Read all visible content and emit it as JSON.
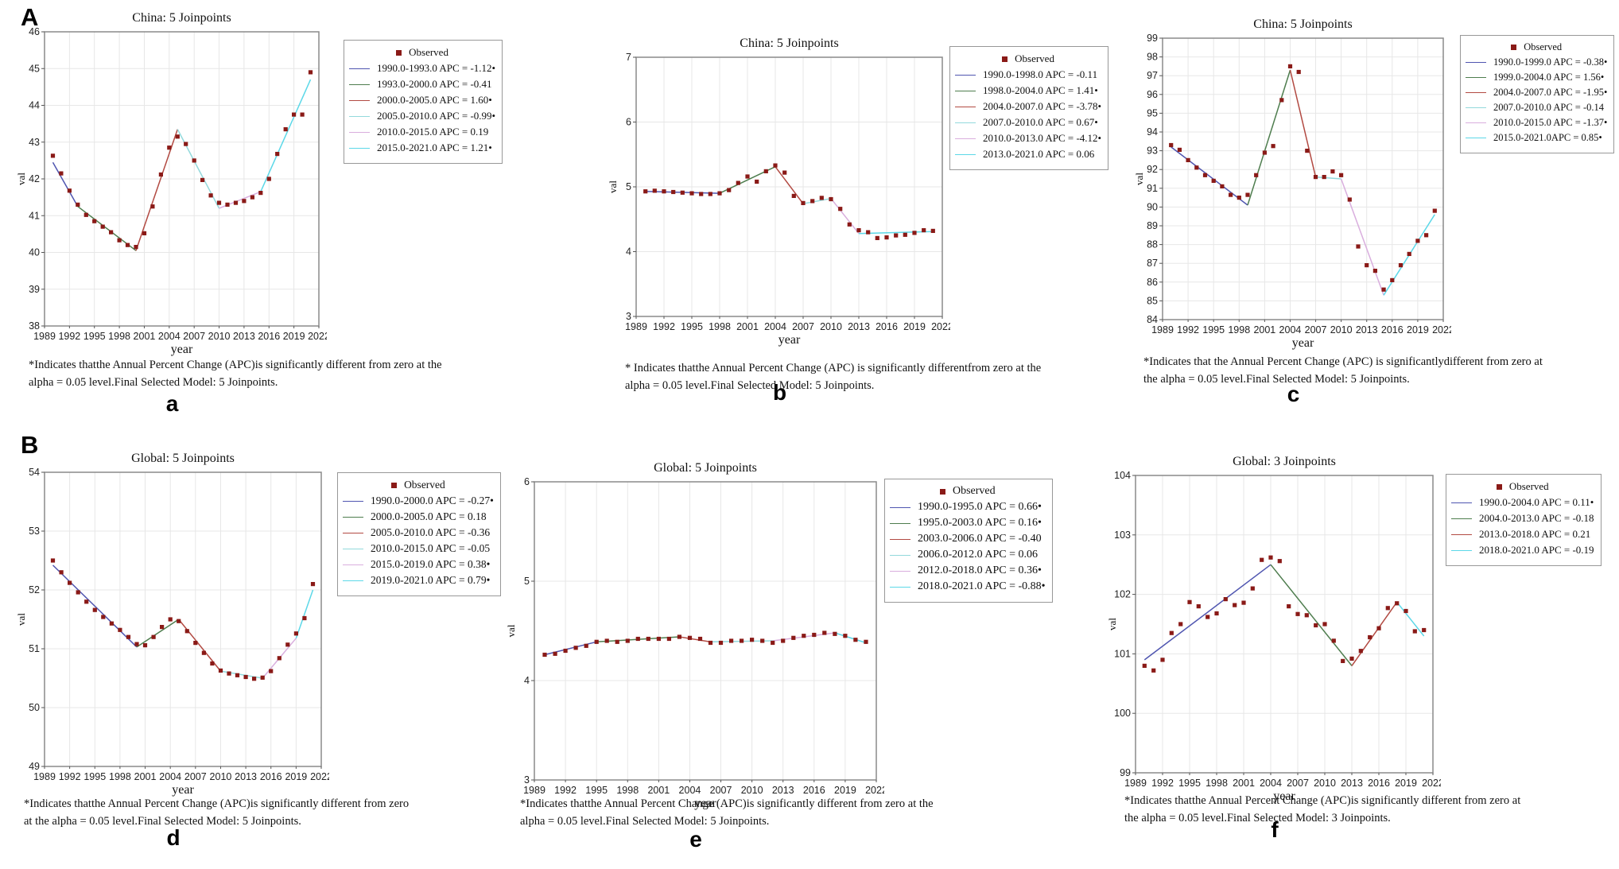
{
  "figure": {
    "row_labels": [
      "A",
      "B"
    ],
    "marker_color": "#8a1a17",
    "segment_palette": [
      "#4f55b0",
      "#4e7d4e",
      "#b24a42",
      "#93d9dc",
      "#d9aede",
      "#5cd8e8"
    ]
  },
  "chart_data": [
    {
      "id": "a",
      "letter": "a",
      "type": "line",
      "title": "China: 5 Joinpoints",
      "xlabel": "year",
      "ylabel": "val",
      "xlim": [
        1989,
        2022
      ],
      "ylim": [
        38,
        46
      ],
      "ytick_step": 1,
      "xticks": [
        1989,
        1992,
        1995,
        1998,
        2001,
        2004,
        2007,
        2010,
        2013,
        2016,
        2019,
        2022
      ],
      "x_start": 1990,
      "values": [
        42.63,
        42.15,
        41.68,
        41.3,
        41.02,
        40.85,
        40.7,
        40.55,
        40.33,
        40.2,
        40.15,
        40.52,
        41.25,
        42.12,
        42.85,
        43.15,
        42.95,
        42.5,
        41.97,
        41.55,
        41.35,
        41.3,
        41.35,
        41.4,
        41.5,
        41.62,
        42.0,
        42.68,
        43.35,
        43.75,
        43.75,
        44.9
      ],
      "segments": [
        [
          1990,
          42.45,
          1993,
          41.25,
          0
        ],
        [
          1993,
          41.25,
          2000,
          40.05,
          1
        ],
        [
          2000,
          40.05,
          2005,
          43.35,
          2
        ],
        [
          2005,
          43.35,
          2010,
          41.2,
          3
        ],
        [
          2010,
          41.2,
          2015,
          41.65,
          4
        ],
        [
          2015,
          41.65,
          2021,
          44.7,
          5
        ]
      ],
      "legend": {
        "header": "Observed",
        "items": [
          "1990.0-1993.0 APC = -1.12•",
          "1993.0-2000.0 APC = -0.41",
          "2000.0-2005.0 APC = 1.60•",
          "2005.0-2010.0 APC = -0.99•",
          "2010.0-2015.0 APC = 0.19",
          "2015.0-2021.0 APC = 1.21•"
        ]
      },
      "footnote": [
        "*Indicates thatthe Annual Percent Change (APC)is significantly different from zero at the",
        "alpha = 0.05 level.Final Selected Model: 5 Joinpoints."
      ]
    },
    {
      "id": "b",
      "letter": "b",
      "type": "line",
      "title": "China: 5 Joinpoints",
      "xlabel": "year",
      "ylabel": "val",
      "xlim": [
        1989,
        2022
      ],
      "ylim": [
        3,
        7
      ],
      "ytick_step": 1,
      "xticks": [
        1989,
        1992,
        1995,
        1998,
        2001,
        2004,
        2007,
        2010,
        2013,
        2016,
        2019,
        2022
      ],
      "x_start": 1990,
      "values": [
        4.93,
        4.94,
        4.93,
        4.92,
        4.91,
        4.9,
        4.89,
        4.89,
        4.9,
        4.95,
        5.06,
        5.16,
        5.08,
        5.24,
        5.33,
        5.22,
        4.86,
        4.75,
        4.78,
        4.83,
        4.81,
        4.66,
        4.42,
        4.33,
        4.3,
        4.21,
        4.22,
        4.25,
        4.26,
        4.29,
        4.33,
        4.32
      ],
      "segments": [
        [
          1990,
          4.93,
          1998,
          4.9,
          0
        ],
        [
          1998,
          4.9,
          2004,
          5.31,
          1
        ],
        [
          2004,
          5.31,
          2007,
          4.74,
          2
        ],
        [
          2007,
          4.74,
          2010,
          4.82,
          3
        ],
        [
          2010,
          4.82,
          2013,
          4.28,
          4
        ],
        [
          2013,
          4.28,
          2021,
          4.31,
          5
        ]
      ],
      "legend": {
        "header": "Observed",
        "items": [
          "1990.0-1998.0 APC = -0.11",
          "1998.0-2004.0 APC = 1.41•",
          "2004.0-2007.0 APC = -3.78•",
          "2007.0-2010.0 APC = 0.67•",
          "2010.0-2013.0 APC = -4.12•",
          "2013.0-2021.0 APC = 0.06"
        ]
      },
      "footnote": [
        "* Indicates thatthe Annual Percent Change (APC) is significantly differentfrom zero at the",
        "alpha = 0.05 level.Final Selected Model: 5 Joinpoints."
      ]
    },
    {
      "id": "c",
      "letter": "c",
      "type": "line",
      "title": "China: 5 Joinpoints",
      "xlabel": "year",
      "ylabel": "val",
      "xlim": [
        1989,
        2022
      ],
      "ylim": [
        84,
        99
      ],
      "ytick_step": 1,
      "xticks": [
        1989,
        1992,
        1995,
        1998,
        2001,
        2004,
        2007,
        2010,
        2013,
        2016,
        2019,
        2022
      ],
      "x_start": 1990,
      "values": [
        93.3,
        93.05,
        92.5,
        92.1,
        91.7,
        91.4,
        91.1,
        90.65,
        90.5,
        90.65,
        91.7,
        92.9,
        93.25,
        95.7,
        97.5,
        97.2,
        93.0,
        91.6,
        91.6,
        91.9,
        91.7,
        90.4,
        87.9,
        86.9,
        86.6,
        85.6,
        86.1,
        86.9,
        87.5,
        88.2,
        88.5,
        89.8
      ],
      "segments": [
        [
          1990,
          93.2,
          1999,
          90.1,
          0
        ],
        [
          1999,
          90.1,
          2004,
          97.3,
          1
        ],
        [
          2004,
          97.3,
          2007,
          91.6,
          2
        ],
        [
          2007,
          91.6,
          2010,
          91.5,
          3
        ],
        [
          2010,
          91.5,
          2015,
          85.3,
          4
        ],
        [
          2015,
          85.3,
          2021,
          89.6,
          5
        ]
      ],
      "legend": {
        "header": "Observed",
        "items": [
          "1990.0-1999.0 APC = -0.38•",
          "1999.0-2004.0 APC = 1.56•",
          "2004.0-2007.0 APC = -1.95•",
          "2007.0-2010.0 APC = -0.14",
          "2010.0-2015.0 APC = -1.37•",
          "2015.0-2021.0APC = 0.85•"
        ]
      },
      "footnote": [
        "*Indicates that the Annual Percent Change (APC) is significantlydifferent from zero at",
        "the alpha = 0.05 level.Final Selected Model: 5 Joinpoints."
      ]
    },
    {
      "id": "d",
      "letter": "d",
      "type": "line",
      "title": "Global: 5 Joinpoints",
      "xlabel": "year",
      "ylabel": "val",
      "xlim": [
        1989,
        2022
      ],
      "ylim": [
        49,
        54
      ],
      "ytick_step": 1,
      "xticks": [
        1989,
        1992,
        1995,
        1998,
        2001,
        2004,
        2007,
        2010,
        2013,
        2016,
        2019,
        2022
      ],
      "x_start": 1990,
      "values": [
        52.5,
        52.3,
        52.12,
        51.96,
        51.8,
        51.66,
        51.54,
        51.43,
        51.32,
        51.2,
        51.08,
        51.06,
        51.2,
        51.37,
        51.5,
        51.47,
        51.3,
        51.1,
        50.93,
        50.75,
        50.63,
        50.58,
        50.55,
        50.52,
        50.49,
        50.51,
        50.62,
        50.84,
        51.07,
        51.26,
        51.52,
        52.1
      ],
      "segments": [
        [
          1990,
          52.42,
          2000,
          51.03,
          0
        ],
        [
          2000,
          51.03,
          2005,
          51.5,
          1
        ],
        [
          2005,
          51.5,
          2010,
          50.62,
          2
        ],
        [
          2010,
          50.62,
          2015,
          50.5,
          3
        ],
        [
          2015,
          50.5,
          2019,
          51.18,
          4
        ],
        [
          2019,
          51.18,
          2021,
          52.0,
          5
        ]
      ],
      "legend": {
        "header": "Observed",
        "items": [
          "1990.0-2000.0 APC = -0.27•",
          "2000.0-2005.0 APC = 0.18",
          "2005.0-2010.0 APC = -0.36",
          "2010.0-2015.0 APC = -0.05",
          "2015.0-2019.0 APC = 0.38•",
          "2019.0-2021.0 APC = 0.79•"
        ]
      },
      "footnote": [
        "*Indicates thatthe Annual Percent Change (APC)is significantly different from zero",
        "at the alpha = 0.05 level.Final Selected Model: 5 Joinpoints."
      ]
    },
    {
      "id": "e",
      "letter": "e",
      "type": "line",
      "title": "Global: 5 Joinpoints",
      "xlabel": "year",
      "ylabel": "val",
      "xlim": [
        1989,
        2022
      ],
      "ylim": [
        3,
        6
      ],
      "ytick_step": 1,
      "xticks": [
        1989,
        1992,
        1995,
        1998,
        2001,
        2004,
        2007,
        2010,
        2013,
        2016,
        2019,
        2022
      ],
      "x_start": 1990,
      "values": [
        4.26,
        4.27,
        4.3,
        4.33,
        4.35,
        4.39,
        4.4,
        4.39,
        4.4,
        4.42,
        4.42,
        4.42,
        4.42,
        4.44,
        4.43,
        4.42,
        4.38,
        4.38,
        4.4,
        4.4,
        4.41,
        4.4,
        4.38,
        4.4,
        4.43,
        4.45,
        4.46,
        4.48,
        4.47,
        4.45,
        4.41,
        4.39
      ],
      "segments": [
        [
          1990,
          4.26,
          1995,
          4.39,
          0
        ],
        [
          1995,
          4.39,
          2003,
          4.44,
          1
        ],
        [
          2003,
          4.44,
          2006,
          4.39,
          2
        ],
        [
          2006,
          4.39,
          2012,
          4.4,
          3
        ],
        [
          2012,
          4.4,
          2018,
          4.48,
          4
        ],
        [
          2018,
          4.48,
          2021,
          4.38,
          5
        ]
      ],
      "legend": {
        "header": "Observed",
        "items": [
          "1990.0-1995.0 APC = 0.66•",
          "1995.0-2003.0 APC = 0.16•",
          "2003.0-2006.0 APC = -0.40",
          "2006.0-2012.0 APC = 0.06",
          "2012.0-2018.0 APC = 0.36•",
          "2018.0-2021.0 APC = -0.88•"
        ]
      },
      "footnote": [
        "*Indicates thatthe Annual Percent Change (APC)is significantly different from zero at the",
        "alpha = 0.05 level.Final Selected Model: 5 Joinpoints."
      ]
    },
    {
      "id": "f",
      "letter": "f",
      "type": "line",
      "title": "Global: 3 Joinpoints",
      "xlabel": "year",
      "ylabel": "val",
      "xlim": [
        1989,
        2022
      ],
      "ylim": [
        99,
        104
      ],
      "ytick_step": 1,
      "xticks": [
        1989,
        1992,
        1995,
        1998,
        2001,
        2004,
        2007,
        2010,
        2013,
        2016,
        2019,
        2022
      ],
      "x_start": 1990,
      "values": [
        100.8,
        100.72,
        100.9,
        101.35,
        101.5,
        101.87,
        101.8,
        101.62,
        101.68,
        101.92,
        101.82,
        101.86,
        102.1,
        102.58,
        102.62,
        102.56,
        101.8,
        101.67,
        101.65,
        101.48,
        101.5,
        101.22,
        100.88,
        100.92,
        101.05,
        101.28,
        101.43,
        101.77,
        101.85,
        101.72,
        101.38,
        101.4
      ],
      "segments": [
        [
          1990,
          100.9,
          2004,
          102.5,
          0
        ],
        [
          2004,
          102.5,
          2013,
          100.8,
          1
        ],
        [
          2013,
          100.8,
          2018,
          101.87,
          2
        ],
        [
          2018,
          101.87,
          2021,
          101.3,
          5
        ]
      ],
      "legend": {
        "header": "Observed",
        "items": [
          "1990.0-2004.0 APC = 0.11•",
          "2004.0-2013.0 APC = -0.18",
          "2013.0-2018.0 APC = 0.21",
          "2018.0-2021.0 APC = -0.19"
        ]
      },
      "footnote": [
        "*Indicates thatthe Annual Percent Change (APC)is significantly different from zero at",
        "the alpha = 0.05 level.Final Selected Model: 3 Joinpoints."
      ]
    }
  ]
}
